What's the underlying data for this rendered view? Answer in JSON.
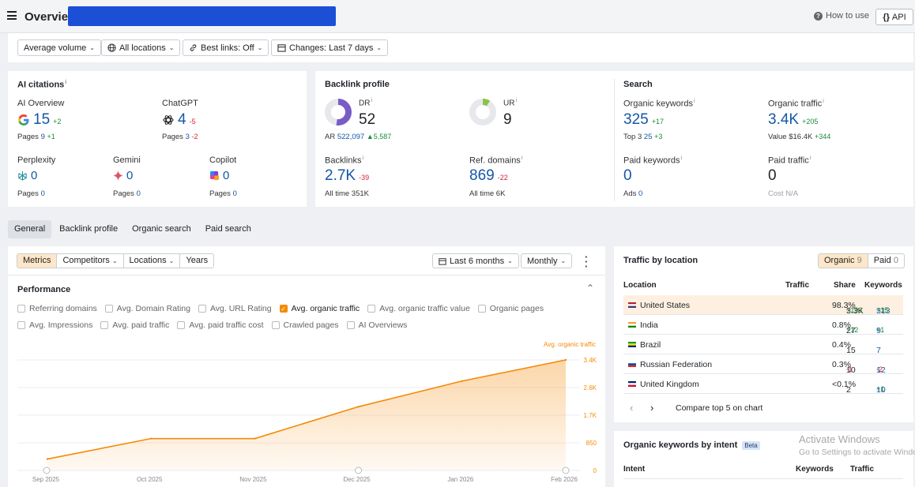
{
  "header": {
    "title": "Overview",
    "how_to": "How to use",
    "api": "API"
  },
  "filters": [
    {
      "label": "Average volume",
      "icon": ""
    },
    {
      "label": "All locations",
      "icon": "globe-icon"
    },
    {
      "label": "Best links: Off",
      "icon": "link-icon"
    },
    {
      "label": "Changes: Last 7 days",
      "icon": "calendar-icon"
    }
  ],
  "ai_citations": {
    "title": "AI citations",
    "overview": {
      "label": "AI Overview",
      "value": "15",
      "delta": "+2",
      "pages_label": "Pages",
      "pages": "9",
      "pages_delta": "+1"
    },
    "chatgpt": {
      "label": "ChatGPT",
      "value": "4",
      "delta": "-5",
      "pages_label": "Pages",
      "pages": "3",
      "pages_delta": "-2"
    },
    "perplexity": {
      "label": "Perplexity",
      "value": "0",
      "pages_label": "Pages",
      "pages": "0"
    },
    "gemini": {
      "label": "Gemini",
      "value": "0",
      "pages_label": "Pages",
      "pages": "0"
    },
    "copilot": {
      "label": "Copilot",
      "value": "0",
      "pages_label": "Pages",
      "pages": "0"
    }
  },
  "backlink_profile": {
    "title": "Backlink profile",
    "dr": {
      "label": "DR",
      "value": "52",
      "fill": 0.52
    },
    "ur": {
      "label": "UR",
      "value": "9",
      "fill": 0.09
    },
    "ar": {
      "label": "AR",
      "value": "522,097",
      "delta": "5,587"
    },
    "backlinks": {
      "label": "Backlinks",
      "value": "2.7K",
      "delta": "-39",
      "sub_label": "All time",
      "sub": "351K"
    },
    "ref_domains": {
      "label": "Ref. domains",
      "value": "869",
      "delta": "-22",
      "sub_label": "All time",
      "sub": "6K"
    }
  },
  "search": {
    "title": "Search",
    "organic_keywords": {
      "label": "Organic keywords",
      "value": "325",
      "delta": "+17",
      "sub_label": "Top 3",
      "sub": "25",
      "sub_delta": "+3"
    },
    "organic_traffic": {
      "label": "Organic traffic",
      "value": "3.4K",
      "delta": "+205",
      "sub_label": "Value",
      "sub": "$16.4K",
      "sub_delta": "+344"
    },
    "paid_keywords": {
      "label": "Paid keywords",
      "value": "0",
      "sub_label": "Ads",
      "sub": "0"
    },
    "paid_traffic": {
      "label": "Paid traffic",
      "value": "0",
      "sub_label": "Cost",
      "sub": "N/A"
    }
  },
  "section_tabs": [
    "General",
    "Backlink profile",
    "Organic search",
    "Paid search"
  ],
  "chart_controls": {
    "segments": [
      "Metrics",
      "Competitors",
      "Locations",
      "Years"
    ],
    "period": "Last 6 months",
    "interval": "Monthly"
  },
  "performance": {
    "title": "Performance",
    "checkboxes_row1": [
      {
        "label": "Referring domains",
        "checked": false
      },
      {
        "label": "Avg. Domain Rating",
        "checked": false
      },
      {
        "label": "Avg. URL Rating",
        "checked": false
      },
      {
        "label": "Avg. organic traffic",
        "checked": true
      },
      {
        "label": "Avg. organic traffic value",
        "checked": false
      },
      {
        "label": "Organic pages",
        "checked": false
      }
    ],
    "checkboxes_row2": [
      {
        "label": "Avg. Impressions",
        "checked": false
      },
      {
        "label": "Avg. paid traffic",
        "checked": false
      },
      {
        "label": "Avg. paid traffic cost",
        "checked": false
      },
      {
        "label": "Crawled pages",
        "checked": false
      },
      {
        "label": "AI Overviews",
        "checked": false
      }
    ]
  },
  "chart_data": {
    "type": "area",
    "series": [
      {
        "name": "Avg. organic traffic",
        "values": [
          350,
          980,
          980,
          1960,
          2750,
          3400
        ]
      }
    ],
    "x": [
      "Sep 2025",
      "Oct 2025",
      "Nov 2025",
      "Dec 2025",
      "Jan 2026",
      "Feb 2026"
    ],
    "y_ticks": [
      "0",
      "850",
      "1.7K",
      "2.6K",
      "3.4K"
    ],
    "ylim": [
      0,
      3400
    ],
    "color": "#f58a07",
    "grid": true
  },
  "traffic_by_location": {
    "title": "Traffic by location",
    "toggle": [
      {
        "label": "Organic",
        "count": "9"
      },
      {
        "label": "Paid",
        "count": "0"
      }
    ],
    "columns": [
      "Location",
      "Traffic",
      "Share",
      "Keywords"
    ],
    "rows": [
      {
        "country": "United States",
        "flag": "us",
        "traffic": "3.3K",
        "traffic_delta": "+193",
        "share": "98.3%",
        "keywords": "313",
        "keywords_delta": "+15"
      },
      {
        "country": "India",
        "flag": "in",
        "traffic": "27",
        "traffic_delta": "+12",
        "share": "0.8%",
        "keywords": "9",
        "keywords_delta": "+1"
      },
      {
        "country": "Brazil",
        "flag": "br",
        "traffic": "15",
        "traffic_delta": "",
        "share": "0.4%",
        "keywords": "7",
        "keywords_delta": ""
      },
      {
        "country": "Russian Federation",
        "flag": "ru",
        "traffic": "10",
        "traffic_delta": "-1",
        "share": "0.3%",
        "keywords": "12",
        "keywords_delta": "-2"
      },
      {
        "country": "United Kingdom",
        "flag": "gb",
        "traffic": "2",
        "traffic_delta": "",
        "share": "<0.1%",
        "keywords": "10",
        "keywords_delta": "+1"
      }
    ],
    "compare_label": "Compare top 5 on chart"
  },
  "keywords_by_intent": {
    "title": "Organic keywords by intent",
    "badge": "Beta",
    "columns": [
      "Intent",
      "Keywords",
      "Traffic"
    ]
  },
  "watermark": {
    "line1": "Activate Windows",
    "line2": "Go to Settings to activate Windows."
  }
}
